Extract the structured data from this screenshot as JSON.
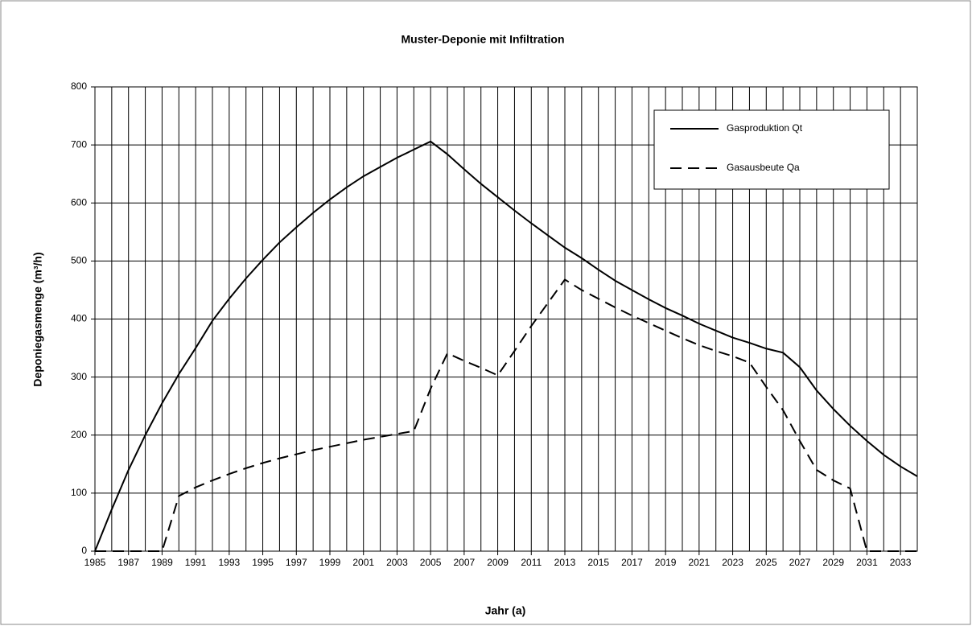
{
  "chart_data": {
    "type": "line",
    "title": "Muster-Deponie mit Infiltration",
    "xlabel": "Jahr (a)",
    "ylabel": "Deponiegasmenge (m³/h)",
    "x": [
      1985,
      1986,
      1987,
      1988,
      1989,
      1990,
      1991,
      1992,
      1993,
      1994,
      1995,
      1996,
      1997,
      1998,
      1999,
      2000,
      2001,
      2002,
      2003,
      2004,
      2005,
      2006,
      2007,
      2008,
      2009,
      2010,
      2011,
      2012,
      2013,
      2014,
      2015,
      2016,
      2017,
      2018,
      2019,
      2020,
      2021,
      2022,
      2023,
      2024,
      2025,
      2026,
      2027,
      2028,
      2029,
      2030,
      2031,
      2032,
      2033,
      2034
    ],
    "series": [
      {
        "name": "Gasproduktion Qt",
        "color": "#000000",
        "linestyle": "solid",
        "values": [
          0,
          72,
          140,
          200,
          255,
          305,
          350,
          397,
          435,
          470,
          502,
          532,
          558,
          583,
          606,
          627,
          646,
          662,
          678,
          692,
          706,
          684,
          658,
          633,
          610,
          587,
          565,
          544,
          523,
          505,
          485,
          466,
          450,
          434,
          419,
          406,
          392,
          380,
          368,
          359,
          349,
          342,
          317,
          277,
          245,
          216,
          190,
          166,
          146,
          129
        ]
      },
      {
        "name": "Gasausbeute Qa",
        "color": "#000000",
        "linestyle": "dashed",
        "values": [
          0,
          0,
          0,
          0,
          0,
          95,
          110,
          122,
          133,
          143,
          152,
          160,
          167,
          174,
          180,
          186,
          192,
          197,
          202,
          207,
          280,
          341,
          328,
          316,
          303,
          345,
          388,
          428,
          468,
          450,
          435,
          420,
          406,
          393,
          380,
          367,
          355,
          345,
          336,
          325,
          283,
          243,
          190,
          140,
          122,
          108,
          0,
          0,
          0,
          0
        ]
      }
    ],
    "xlim": [
      1985,
      2034
    ],
    "xticks": [
      1985,
      1987,
      1989,
      1991,
      1993,
      1995,
      1997,
      1999,
      2001,
      2003,
      2005,
      2007,
      2009,
      2011,
      2013,
      2015,
      2017,
      2019,
      2021,
      2023,
      2025,
      2027,
      2029,
      2031,
      2033
    ],
    "ylim": [
      0,
      800
    ],
    "yticks": [
      0,
      100,
      200,
      300,
      400,
      500,
      600,
      700,
      800
    ],
    "grid": true,
    "legend": "upper right"
  }
}
